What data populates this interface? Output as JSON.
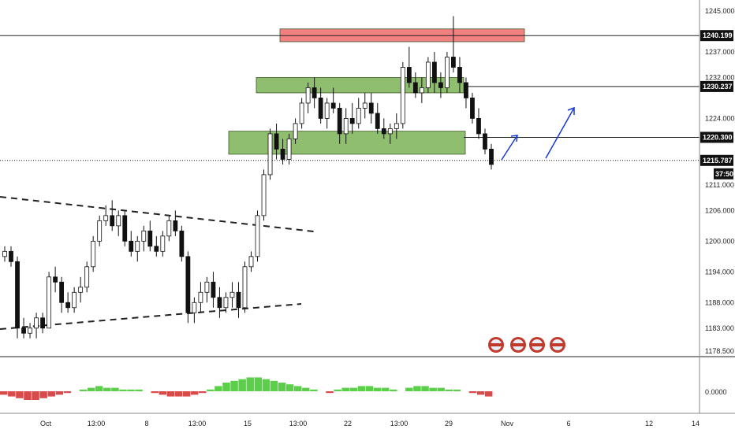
{
  "chart_data": {
    "type": "candlestick",
    "instrument_note": "",
    "y_axis": {
      "range": [
        1176,
        1247
      ],
      "ticks": [
        1245.0,
        1237.0,
        1232.0,
        1224.0,
        1211.0,
        1206.0,
        1200.0,
        1194.0,
        1188.0,
        1183.0,
        1178.5
      ],
      "tick_labels": [
        "1245.000",
        "1237.000",
        "1232.000",
        "1224.000",
        "1211.000",
        "1206.000",
        "1200.000",
        "1194.000",
        "1188.000",
        "1183.000",
        "1178.500"
      ]
    },
    "price_badges": [
      {
        "value": 1240.199,
        "label": "1240.199"
      },
      {
        "value": 1230.237,
        "label": "1230.237"
      },
      {
        "value": 1220.3,
        "label": "1220.300"
      },
      {
        "value": 1215.787,
        "label": "1215.787"
      }
    ],
    "countdown_label": "37:50",
    "x_axis": {
      "labels": [
        "Oct",
        "13:00",
        "8",
        "13:00",
        "15",
        "13:00",
        "22",
        "13:00",
        "29",
        "Nov",
        "6",
        "12",
        "14"
      ]
    },
    "horizontal_levels": [
      1240.199,
      1230.237,
      1220.3,
      1215.787
    ],
    "zones": [
      {
        "name": "resistance",
        "color": "#f28080",
        "y_top": 1241.5,
        "y_bottom": 1239.0
      },
      {
        "name": "upper-support",
        "color": "#8fbf6e",
        "y_top": 1232.0,
        "y_bottom": 1229.0
      },
      {
        "name": "lower-support",
        "color": "#8fbf6e",
        "y_top": 1221.5,
        "y_bottom": 1217.0
      }
    ],
    "candles": [
      [
        1197,
        1199,
        1196,
        1198
      ],
      [
        1198,
        1199,
        1195,
        1196
      ],
      [
        1196,
        1197,
        1181,
        1183
      ],
      [
        1183,
        1185,
        1181,
        1182
      ],
      [
        1182,
        1184,
        1181,
        1183
      ],
      [
        1183,
        1186,
        1181,
        1185
      ],
      [
        1185,
        1186,
        1182,
        1183
      ],
      [
        1183,
        1194,
        1183,
        1193
      ],
      [
        1193,
        1195,
        1190,
        1192
      ],
      [
        1192,
        1193,
        1186,
        1188
      ],
      [
        1188,
        1190,
        1186,
        1187
      ],
      [
        1187,
        1191,
        1186,
        1190
      ],
      [
        1190,
        1193,
        1188,
        1191
      ],
      [
        1191,
        1196,
        1190,
        1195
      ],
      [
        1195,
        1201,
        1194,
        1200
      ],
      [
        1200,
        1205,
        1199,
        1204
      ],
      [
        1204,
        1207,
        1203,
        1205
      ],
      [
        1205,
        1208,
        1202,
        1203
      ],
      [
        1203,
        1206,
        1201,
        1205
      ],
      [
        1205,
        1206,
        1199,
        1200
      ],
      [
        1200,
        1202,
        1197,
        1198
      ],
      [
        1198,
        1201,
        1196,
        1200
      ],
      [
        1200,
        1203,
        1198,
        1202
      ],
      [
        1202,
        1204,
        1198,
        1199
      ],
      [
        1199,
        1201,
        1197,
        1198
      ],
      [
        1198,
        1202,
        1197,
        1201
      ],
      [
        1201,
        1205,
        1200,
        1204
      ],
      [
        1204,
        1206,
        1201,
        1202
      ],
      [
        1202,
        1203,
        1196,
        1197
      ],
      [
        1197,
        1198,
        1184,
        1186
      ],
      [
        1186,
        1189,
        1184,
        1188
      ],
      [
        1188,
        1192,
        1186,
        1190
      ],
      [
        1190,
        1193,
        1188,
        1192
      ],
      [
        1192,
        1194,
        1187,
        1189
      ],
      [
        1189,
        1191,
        1185,
        1187
      ],
      [
        1187,
        1190,
        1186,
        1189
      ],
      [
        1189,
        1192,
        1187,
        1190
      ],
      [
        1190,
        1192,
        1185,
        1187
      ],
      [
        1187,
        1196,
        1186,
        1195
      ],
      [
        1195,
        1198,
        1194,
        1197
      ],
      [
        1197,
        1206,
        1196,
        1205
      ],
      [
        1205,
        1214,
        1204,
        1213
      ],
      [
        1213,
        1222,
        1212,
        1221
      ],
      [
        1221,
        1223,
        1216,
        1218
      ],
      [
        1218,
        1220,
        1215,
        1216
      ],
      [
        1216,
        1221,
        1215,
        1220
      ],
      [
        1220,
        1224,
        1219,
        1223
      ],
      [
        1223,
        1228,
        1222,
        1227
      ],
      [
        1227,
        1231,
        1225,
        1230
      ],
      [
        1230,
        1232,
        1226,
        1228
      ],
      [
        1228,
        1230,
        1223,
        1224
      ],
      [
        1224,
        1228,
        1222,
        1227
      ],
      [
        1227,
        1230,
        1225,
        1226
      ],
      [
        1226,
        1227,
        1219,
        1221
      ],
      [
        1221,
        1226,
        1219,
        1224
      ],
      [
        1224,
        1227,
        1221,
        1223
      ],
      [
        1223,
        1228,
        1222,
        1226
      ],
      [
        1226,
        1229,
        1224,
        1227
      ],
      [
        1227,
        1229,
        1223,
        1225
      ],
      [
        1225,
        1227,
        1221,
        1222
      ],
      [
        1222,
        1224,
        1220,
        1221
      ],
      [
        1221,
        1223,
        1219,
        1222
      ],
      [
        1222,
        1225,
        1220,
        1223
      ],
      [
        1223,
        1235,
        1222,
        1234
      ],
      [
        1234,
        1238,
        1230,
        1231
      ],
      [
        1231,
        1233,
        1228,
        1229
      ],
      [
        1229,
        1232,
        1227,
        1230
      ],
      [
        1230,
        1236,
        1229,
        1235
      ],
      [
        1235,
        1237,
        1229,
        1231
      ],
      [
        1231,
        1233,
        1228,
        1230
      ],
      [
        1230,
        1237,
        1229,
        1236
      ],
      [
        1236,
        1244,
        1233,
        1234
      ],
      [
        1234,
        1236,
        1229,
        1231
      ],
      [
        1231,
        1232,
        1226,
        1228
      ],
      [
        1228,
        1229,
        1223,
        1224
      ],
      [
        1224,
        1226,
        1220,
        1221
      ],
      [
        1221,
        1222,
        1217,
        1218
      ],
      [
        1218,
        1219,
        1214,
        1215
      ]
    ],
    "oscillator": {
      "zero_label": "0.0000",
      "values": [
        -2,
        -3,
        -4,
        -5,
        -5,
        -4,
        -3,
        -2,
        -1,
        0,
        1,
        2,
        3,
        2,
        2,
        1,
        1,
        1,
        0,
        -1,
        -2,
        -3,
        -3,
        -3,
        -2,
        -1,
        1,
        3,
        5,
        6,
        7,
        8,
        8,
        7,
        6,
        5,
        4,
        3,
        2,
        1,
        0,
        -1,
        1,
        2,
        2,
        3,
        3,
        2,
        2,
        1,
        0,
        2,
        3,
        3,
        2,
        2,
        1,
        1,
        0,
        -1,
        -2,
        -3
      ],
      "pos_color": "#5ccf4a",
      "neg_color": "#d94a4a"
    }
  }
}
